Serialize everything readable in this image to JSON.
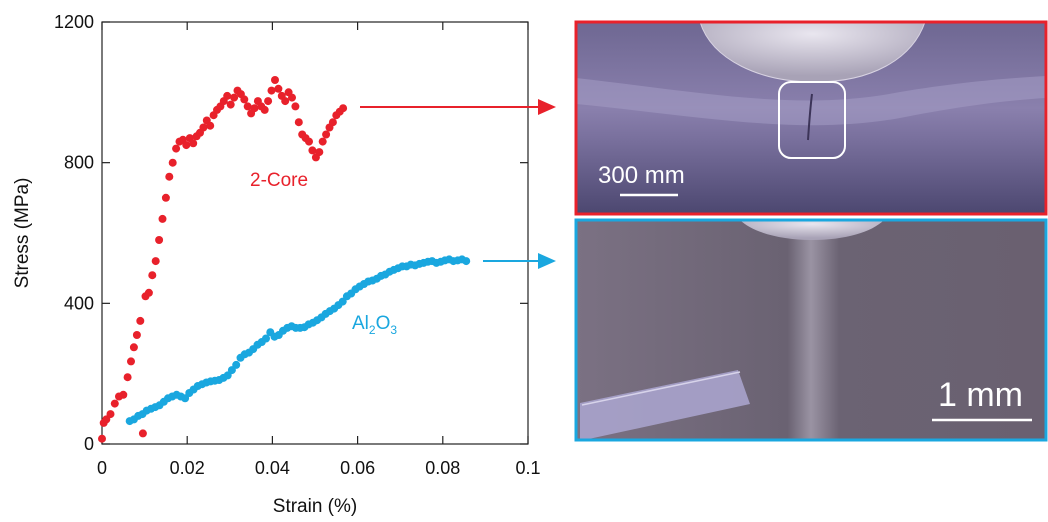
{
  "chart_data": {
    "type": "scatter",
    "xlabel": "Strain (%)",
    "ylabel": "Stress (MPa)",
    "xlim": [
      0,
      0.1
    ],
    "ylim": [
      0,
      1200
    ],
    "x_ticks": [
      "0",
      "0.02",
      "0.04",
      "0.06",
      "0.08",
      "0.1"
    ],
    "y_ticks": [
      "0",
      "400",
      "800",
      "1200"
    ],
    "grid": false,
    "series": [
      {
        "name": "2-Core",
        "color": "#e8212b",
        "points": [
          [
            0.0,
            15
          ],
          [
            0.0004,
            60
          ],
          [
            0.001,
            70
          ],
          [
            0.002,
            85
          ],
          [
            0.003,
            115
          ],
          [
            0.004,
            135
          ],
          [
            0.005,
            140
          ],
          [
            0.006,
            190
          ],
          [
            0.0068,
            235
          ],
          [
            0.0075,
            275
          ],
          [
            0.0082,
            310
          ],
          [
            0.009,
            350
          ],
          [
            0.0096,
            30
          ],
          [
            0.0102,
            420
          ],
          [
            0.011,
            430
          ],
          [
            0.0118,
            480
          ],
          [
            0.0126,
            520
          ],
          [
            0.0134,
            580
          ],
          [
            0.0142,
            640
          ],
          [
            0.015,
            700
          ],
          [
            0.0158,
            760
          ],
          [
            0.0166,
            800
          ],
          [
            0.0174,
            840
          ],
          [
            0.0182,
            860
          ],
          [
            0.019,
            865
          ],
          [
            0.0198,
            850
          ],
          [
            0.0206,
            870
          ],
          [
            0.0214,
            855
          ],
          [
            0.0222,
            875
          ],
          [
            0.023,
            885
          ],
          [
            0.0238,
            900
          ],
          [
            0.0246,
            920
          ],
          [
            0.0254,
            905
          ],
          [
            0.0262,
            935
          ],
          [
            0.027,
            950
          ],
          [
            0.0278,
            960
          ],
          [
            0.0286,
            975
          ],
          [
            0.0294,
            990
          ],
          [
            0.0302,
            965
          ],
          [
            0.031,
            985
          ],
          [
            0.0318,
            1005
          ],
          [
            0.0326,
            995
          ],
          [
            0.0334,
            980
          ],
          [
            0.0342,
            960
          ],
          [
            0.035,
            940
          ],
          [
            0.0358,
            955
          ],
          [
            0.0366,
            975
          ],
          [
            0.0374,
            960
          ],
          [
            0.0382,
            950
          ],
          [
            0.039,
            975
          ],
          [
            0.0398,
            1005
          ],
          [
            0.0406,
            1035
          ],
          [
            0.0414,
            1010
          ],
          [
            0.0422,
            990
          ],
          [
            0.043,
            975
          ],
          [
            0.0438,
            1000
          ],
          [
            0.0446,
            985
          ],
          [
            0.0454,
            960
          ],
          [
            0.0462,
            915
          ],
          [
            0.047,
            880
          ],
          [
            0.0478,
            870
          ],
          [
            0.0486,
            860
          ],
          [
            0.0494,
            835
          ],
          [
            0.0502,
            815
          ],
          [
            0.051,
            830
          ],
          [
            0.0518,
            860
          ],
          [
            0.0526,
            880
          ],
          [
            0.0534,
            900
          ],
          [
            0.0542,
            915
          ],
          [
            0.055,
            935
          ],
          [
            0.0558,
            945
          ],
          [
            0.0566,
            955
          ]
        ]
      },
      {
        "name": "Al₂O₃",
        "color": "#1aa7df",
        "points": [
          [
            0.0065,
            65
          ],
          [
            0.0075,
            70
          ],
          [
            0.0085,
            80
          ],
          [
            0.0095,
            85
          ],
          [
            0.0105,
            95
          ],
          [
            0.0115,
            100
          ],
          [
            0.0125,
            105
          ],
          [
            0.0135,
            110
          ],
          [
            0.0145,
            120
          ],
          [
            0.0155,
            130
          ],
          [
            0.0165,
            135
          ],
          [
            0.0175,
            140
          ],
          [
            0.0185,
            135
          ],
          [
            0.0195,
            130
          ],
          [
            0.0205,
            145
          ],
          [
            0.0215,
            155
          ],
          [
            0.0225,
            165
          ],
          [
            0.0235,
            170
          ],
          [
            0.0245,
            175
          ],
          [
            0.0255,
            178
          ],
          [
            0.0265,
            180
          ],
          [
            0.0275,
            182
          ],
          [
            0.0285,
            188
          ],
          [
            0.0295,
            195
          ],
          [
            0.0305,
            210
          ],
          [
            0.0315,
            225
          ],
          [
            0.0325,
            245
          ],
          [
            0.0335,
            255
          ],
          [
            0.0345,
            260
          ],
          [
            0.0355,
            270
          ],
          [
            0.0365,
            282
          ],
          [
            0.0375,
            290
          ],
          [
            0.0385,
            300
          ],
          [
            0.0395,
            318
          ],
          [
            0.0405,
            305
          ],
          [
            0.0415,
            310
          ],
          [
            0.0425,
            322
          ],
          [
            0.0435,
            330
          ],
          [
            0.0445,
            335
          ],
          [
            0.0455,
            330
          ],
          [
            0.0465,
            330
          ],
          [
            0.0475,
            332
          ],
          [
            0.0485,
            340
          ],
          [
            0.0495,
            345
          ],
          [
            0.0505,
            352
          ],
          [
            0.0515,
            360
          ],
          [
            0.0525,
            370
          ],
          [
            0.0535,
            378
          ],
          [
            0.0545,
            385
          ],
          [
            0.0555,
            395
          ],
          [
            0.0565,
            405
          ],
          [
            0.0575,
            420
          ],
          [
            0.0585,
            428
          ],
          [
            0.0595,
            440
          ],
          [
            0.0605,
            448
          ],
          [
            0.0615,
            455
          ],
          [
            0.0625,
            462
          ],
          [
            0.0635,
            465
          ],
          [
            0.0645,
            470
          ],
          [
            0.0655,
            478
          ],
          [
            0.0665,
            482
          ],
          [
            0.0675,
            490
          ],
          [
            0.0685,
            495
          ],
          [
            0.0695,
            500
          ],
          [
            0.0705,
            505
          ],
          [
            0.0715,
            505
          ],
          [
            0.0725,
            510
          ],
          [
            0.0735,
            508
          ],
          [
            0.0745,
            512
          ],
          [
            0.0755,
            515
          ],
          [
            0.0765,
            518
          ],
          [
            0.0775,
            520
          ],
          [
            0.0785,
            515
          ],
          [
            0.0795,
            518
          ],
          [
            0.0805,
            522
          ],
          [
            0.0815,
            525
          ],
          [
            0.0825,
            520
          ],
          [
            0.0835,
            522
          ],
          [
            0.0845,
            525
          ],
          [
            0.0855,
            520
          ]
        ]
      }
    ],
    "annotations": [
      {
        "text": "2-Core",
        "color": "#e8212b"
      },
      {
        "text": "Al",
        "sub1": "2",
        "mid": "O",
        "sub2": "3",
        "color": "#1aa7df"
      }
    ]
  },
  "images": {
    "top": {
      "frame_color": "#e8212b",
      "scale_label": "300 mm"
    },
    "bottom": {
      "frame_color": "#1aa7df",
      "scale_label": "1 mm"
    }
  },
  "arrows": {
    "top_color": "#e8212b",
    "bottom_color": "#1aa7df"
  }
}
